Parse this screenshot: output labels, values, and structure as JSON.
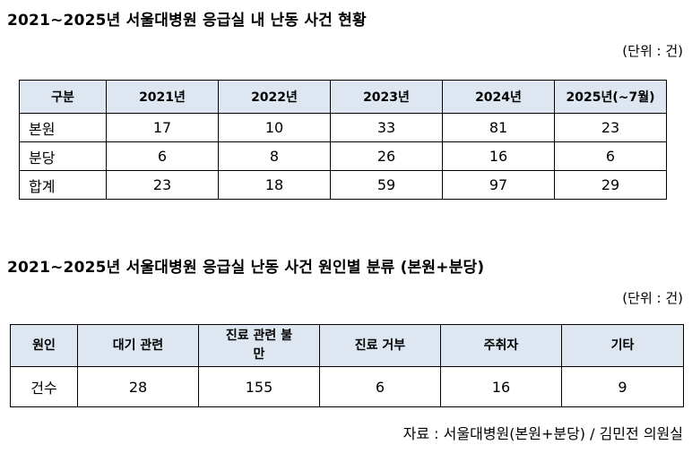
{
  "table1": {
    "title": "2021~2025년 서울대병원 응급실 내 난동 사건 현황",
    "unit": "(단위 : 건)",
    "headers": [
      "구분",
      "2021년",
      "2022년",
      "2023년",
      "2024년",
      "2025년(~7월)"
    ],
    "rows": [
      {
        "label": "본원",
        "values": [
          "17",
          "10",
          "33",
          "81",
          "23"
        ]
      },
      {
        "label": "분당",
        "values": [
          "6",
          "8",
          "26",
          "16",
          "6"
        ]
      },
      {
        "label": "합계",
        "values": [
          "23",
          "18",
          "59",
          "97",
          "29"
        ]
      }
    ]
  },
  "table2": {
    "title": "2021~2025년 서울대병원 응급실 난동 사건 원인별 분류 (본원+분당)",
    "unit": "(단위 : 건)",
    "headers": [
      "원인",
      "대기 관련",
      "진료 관련 불만",
      "진료 거부",
      "주취자",
      "기타"
    ],
    "row": {
      "label": "건수",
      "values": [
        "28",
        "155",
        "6",
        "16",
        "9"
      ]
    }
  },
  "source": "자료 : 서울대병원(본원+분당) / 김민전 의원실",
  "colors": {
    "header_bg": "#dde6f1",
    "border": "#000000",
    "text": "#000000"
  }
}
